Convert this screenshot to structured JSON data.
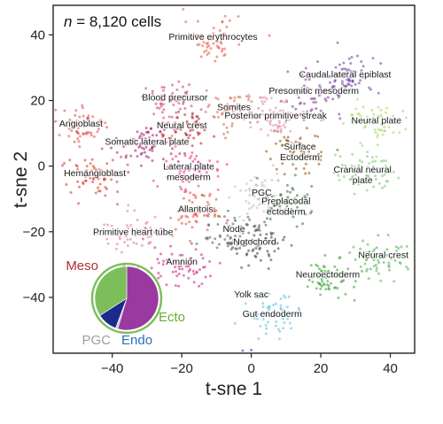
{
  "chart_data": {
    "type": "scatter",
    "title": "",
    "annotation": {
      "n_prefix": "n",
      "count_text": " = 8,120 cells"
    },
    "xlabel": "t-sne 1",
    "ylabel": "t-sne 2",
    "xlim": [
      -57,
      47
    ],
    "ylim": [
      -57,
      49
    ],
    "xticks": [
      -40,
      -20,
      0,
      20,
      40
    ],
    "yticks": [
      -40,
      -20,
      0,
      20,
      40
    ],
    "tick_labels": {
      "x": [
        "−40",
        "−20",
        "0",
        "20",
        "40"
      ],
      "y": [
        "−40",
        "−20",
        "0",
        "20",
        "40"
      ]
    },
    "grid": false,
    "clusters": [
      {
        "name": "Primitive erythrocytes",
        "x": -11,
        "y": 38.5,
        "color": "#e2573a"
      },
      {
        "name": "Caudal lateral epiblast",
        "x": 27,
        "y": 27,
        "color": "#6a3d9a"
      },
      {
        "name": "Blood precursor",
        "x": -22,
        "y": 20,
        "color": "#c23c6e"
      },
      {
        "name": "Presomitic mesoderm",
        "x": 18,
        "y": 22,
        "color": "#7b3294"
      },
      {
        "name": "Somites",
        "x": -5,
        "y": 17,
        "color": "#d6604d"
      },
      {
        "name": "Posterior primitive streak",
        "x": 7,
        "y": 14.5,
        "color": "#e28aa8"
      },
      {
        "name": "Angioblast",
        "x": -49,
        "y": 12,
        "color": "#e04848"
      },
      {
        "name": "Neural plate",
        "x": 36,
        "y": 13,
        "color": "#a6d854"
      },
      {
        "name": "Neural crest",
        "x": -20,
        "y": 11.5,
        "color": "#b2182b"
      },
      {
        "name": "Somatic lateral plate",
        "x": -30,
        "y": 6.5,
        "color": "#a5106d"
      },
      {
        "name": "Surface Ectoderm",
        "x": 14,
        "y": 5,
        "color": "#8c510a"
      },
      {
        "name": "Lateral plate mesoderm",
        "x": -18,
        "y": -1,
        "color": "#e7298a"
      },
      {
        "name": "Cranial neural plate",
        "x": 32,
        "y": -2,
        "color": "#78c679"
      },
      {
        "name": "Hemangioblast",
        "x": -45,
        "y": -3,
        "color": "#d7301f"
      },
      {
        "name": "PGC",
        "x": 3,
        "y": -9,
        "color": "#bbbbbb"
      },
      {
        "name": "Preplacodal ectoderm",
        "x": 10,
        "y": -11.5,
        "color": "#2d6b2d"
      },
      {
        "name": "Allantois",
        "x": -16,
        "y": -14,
        "color": "#e34a33"
      },
      {
        "name": "Node",
        "x": -5,
        "y": -20,
        "color": "#555555"
      },
      {
        "name": "Notochord",
        "x": 1,
        "y": -24,
        "color": "#3d3d3d"
      },
      {
        "name": "Primitive heart tube",
        "x": -34,
        "y": -21,
        "color": "#de77ae"
      },
      {
        "name": "Neural crest",
        "x": 38,
        "y": -28,
        "color": "#4daf4a"
      },
      {
        "name": "Amnion",
        "x": -20,
        "y": -30,
        "color": "#c51b7d"
      },
      {
        "name": "Neuroectoderm",
        "x": 22,
        "y": -34,
        "color": "#33a02c"
      },
      {
        "name": "Gut endoderm",
        "x": 6,
        "y": -46,
        "color": "#5bc0de"
      },
      {
        "name": "Yolk sac",
        "x": 0,
        "y": -63,
        "color": "#253494"
      }
    ],
    "inset_pie": {
      "slices": [
        {
          "name": "Meso",
          "value": 0.48,
          "color": "#9a3aa0"
        },
        {
          "name": "PGC",
          "value": 0.01,
          "color": "#c8c8c8"
        },
        {
          "name": "Endo",
          "value": 0.09,
          "color": "#1c2a8c"
        },
        {
          "name": "Ecto",
          "value": 0.3,
          "color": "#7cbf5a"
        }
      ],
      "labels": [
        {
          "text": "Meso",
          "color": "#b03030",
          "position": "upper-left"
        },
        {
          "text": "Ecto",
          "color": "#66b032",
          "position": "right"
        },
        {
          "text": "PGC",
          "color": "#a0a0a0",
          "position": "bottom-left"
        },
        {
          "text": "Endo",
          "color": "#2a6fb8",
          "position": "bottom"
        }
      ]
    }
  }
}
